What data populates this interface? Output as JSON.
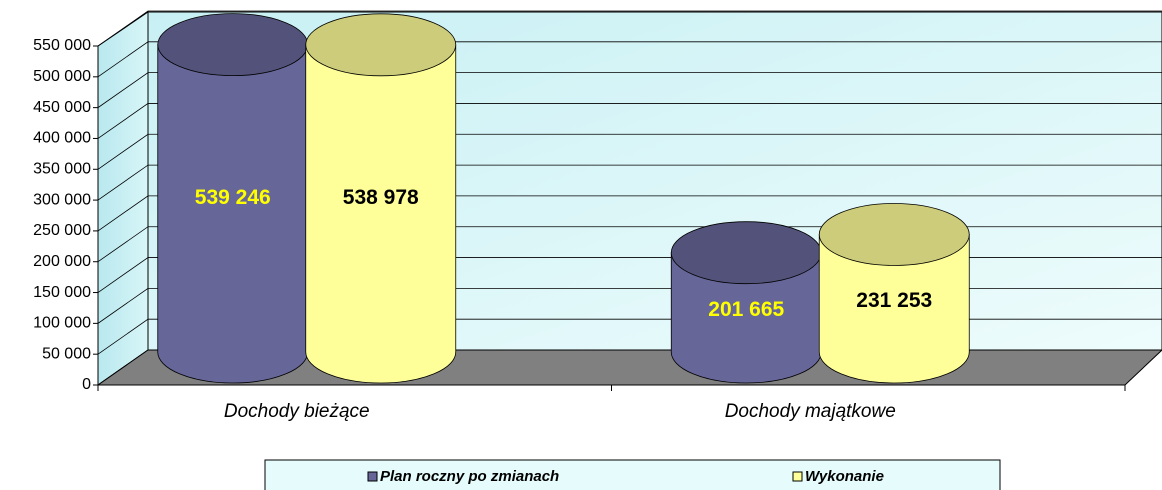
{
  "chart_data": {
    "type": "cylinder-bar",
    "categories": [
      "Dochody bieżące",
      "Dochody majątkowe"
    ],
    "series": [
      {
        "name": "Plan roczny po zmianach",
        "color": "#666699",
        "values": [
          539246,
          201665
        ],
        "value_labels": [
          "539 246",
          "201 665"
        ]
      },
      {
        "name": "Wykonanie",
        "color": "#ffff99",
        "values": [
          538978,
          231253
        ],
        "value_labels": [
          "538 978",
          "231 253"
        ]
      }
    ],
    "ylim": [
      0,
      550000
    ],
    "yticks": [
      0,
      {
        "value": 50000,
        "label": "50 000"
      },
      {
        "value": 100000,
        "label": "100 000"
      },
      {
        "value": 150000,
        "label": "150 000"
      },
      {
        "value": 200000,
        "label": "200 000"
      },
      {
        "value": 250000,
        "label": "250 000"
      },
      {
        "value": 300000,
        "label": "300 000"
      },
      {
        "value": 350000,
        "label": "350 000"
      },
      {
        "value": 400000,
        "label": "400 000"
      },
      {
        "value": 450000,
        "label": "450 000"
      },
      {
        "value": 500000,
        "label": "500 000"
      },
      {
        "value": 550000,
        "label": "550 000"
      }
    ],
    "grid": true,
    "legend": "bottom"
  }
}
